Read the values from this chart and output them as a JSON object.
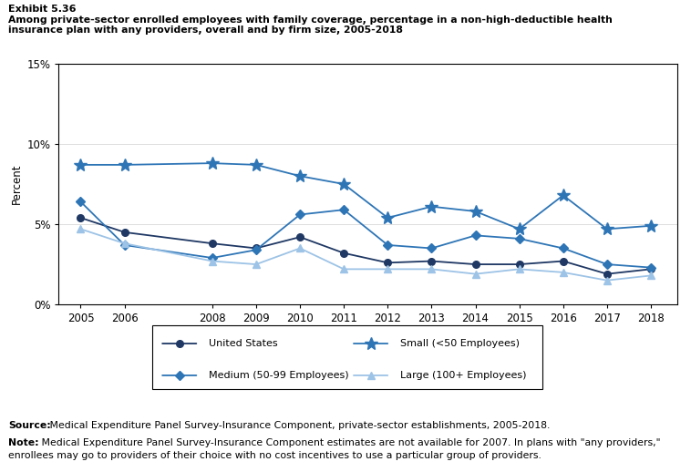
{
  "exhibit_label": "Exhibit 5.36",
  "title_line1": "Among private-sector enrolled employees with family coverage, percentage in a non-high-deductible health",
  "title_line2": "insurance plan with any providers, overall and by firm size, 2005-2018",
  "ylabel": "Percent",
  "years": [
    2005,
    2006,
    2008,
    2009,
    2010,
    2011,
    2012,
    2013,
    2014,
    2015,
    2016,
    2017,
    2018
  ],
  "united_states": [
    5.4,
    4.5,
    3.8,
    3.5,
    4.2,
    3.2,
    2.6,
    2.7,
    2.5,
    2.5,
    2.7,
    1.9,
    2.2
  ],
  "small": [
    8.7,
    8.7,
    8.8,
    8.7,
    8.0,
    7.5,
    5.4,
    6.1,
    5.8,
    4.7,
    6.8,
    4.7,
    4.9
  ],
  "medium": [
    6.4,
    3.7,
    2.9,
    3.4,
    5.6,
    5.9,
    3.7,
    3.5,
    4.3,
    4.1,
    3.5,
    2.5,
    2.3
  ],
  "large": [
    4.7,
    3.8,
    2.7,
    2.5,
    3.5,
    2.2,
    2.2,
    2.2,
    1.9,
    2.2,
    2.0,
    1.5,
    1.8
  ],
  "color_us": "#1f3864",
  "color_small": "#2e75b6",
  "color_medium": "#2e75b6",
  "color_large": "#9dc3e6",
  "ylim": [
    0,
    15
  ],
  "yticks": [
    0,
    5,
    10,
    15
  ],
  "source_bold": "Source:",
  "source_rest": " Medical Expenditure Panel Survey-Insurance Component, private-sector establishments, 2005-2018.",
  "note_bold": "Note:",
  "note_rest1": " Medical Expenditure Panel Survey-Insurance Component estimates are not available for 2007. In plans with \"any providers,\"",
  "note_rest2": "enrollees may go to providers of their choice with no cost incentives to use a particular group of providers.",
  "leg_labels": [
    "United States",
    "Small (<50 Employees)",
    "Medium (50-99 Employees)",
    "Large (100+ Employees)"
  ]
}
